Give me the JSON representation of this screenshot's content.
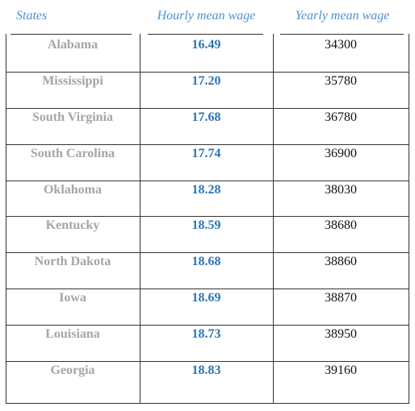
{
  "header": [
    "States",
    "Hourly mean wage",
    "Yearly mean wage"
  ],
  "rows": [
    [
      "Alabama",
      "16.49",
      "34300"
    ],
    [
      "Mississippi",
      "17.20",
      "35780"
    ],
    [
      "South Virginia",
      "17.68",
      "36780"
    ],
    [
      "South Carolina",
      "17.74",
      "36900"
    ],
    [
      "Oklahoma",
      "18.28",
      "38030"
    ],
    [
      "Kentucky",
      "18.59",
      "38680"
    ],
    [
      "North Dakota",
      "18.68",
      "38860"
    ],
    [
      "Iowa",
      "18.69",
      "38870"
    ],
    [
      "Louisiana",
      "18.73",
      "38950"
    ],
    [
      "Georgia",
      "18.83",
      "39160"
    ]
  ]
}
